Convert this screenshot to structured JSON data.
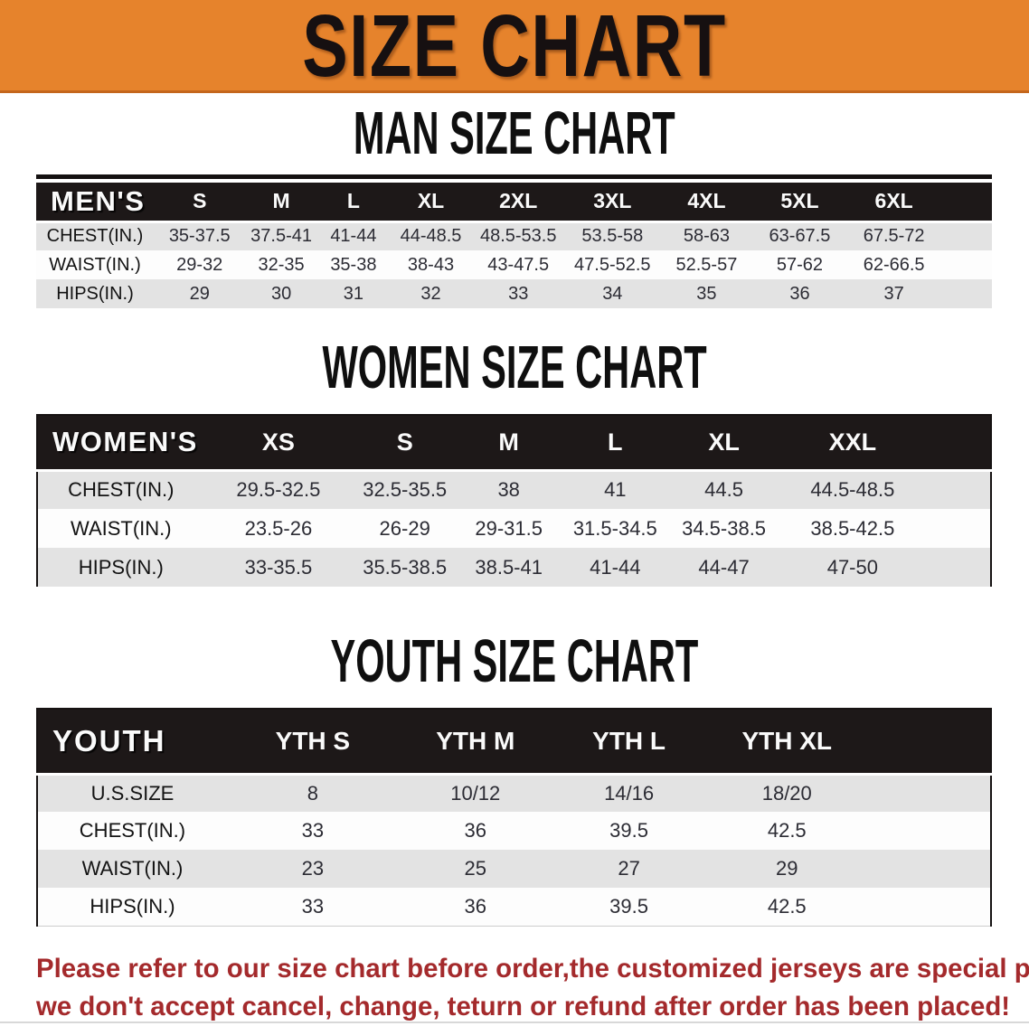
{
  "banner": {
    "title": "SIZE CHART"
  },
  "colors": {
    "banner_orange": "#e6832c",
    "banner_border": "#c4661c",
    "header_black": "#1d1818",
    "row_gray": "#e3e3e3",
    "row_white": "#fdfdfd",
    "disclaimer_red": "#a42a2c"
  },
  "sections": [
    {
      "heading": "MAN SIZE CHART",
      "table": {
        "header": {
          "label": "MEN'S",
          "sizes": [
            "S",
            "M",
            "L",
            "XL",
            "2XL",
            "3XL",
            "4XL",
            "5XL",
            "6XL"
          ]
        },
        "rows": [
          {
            "label": "CHEST(IN.)",
            "values": [
              "35-37.5",
              "37.5-41",
              "41-44",
              "44-48.5",
              "48.5-53.5",
              "53.5-58",
              "58-63",
              "63-67.5",
              "67.5-72"
            ]
          },
          {
            "label": "WAIST(IN.)",
            "values": [
              "29-32",
              "32-35",
              "35-38",
              "38-43",
              "43-47.5",
              "47.5-52.5",
              "52.5-57",
              "57-62",
              "62-66.5"
            ]
          },
          {
            "label": "HIPS(IN.)",
            "values": [
              "29",
              "30",
              "31",
              "32",
              "33",
              "34",
              "35",
              "36",
              "37"
            ]
          }
        ]
      }
    },
    {
      "heading": "WOMEN SIZE CHART",
      "table": {
        "header": {
          "label": "WOMEN'S",
          "sizes": [
            "XS",
            "S",
            "M",
            "L",
            "XL",
            "XXL"
          ]
        },
        "rows": [
          {
            "label": "CHEST(IN.)",
            "values": [
              "29.5-32.5",
              "32.5-35.5",
              "38",
              "41",
              "44.5",
              "44.5-48.5"
            ]
          },
          {
            "label": "WAIST(IN.)",
            "values": [
              "23.5-26",
              "26-29",
              "29-31.5",
              "31.5-34.5",
              "34.5-38.5",
              "38.5-42.5"
            ]
          },
          {
            "label": "HIPS(IN.)",
            "values": [
              "33-35.5",
              "35.5-38.5",
              "38.5-41",
              "41-44",
              "44-47",
              "47-50"
            ]
          }
        ]
      }
    },
    {
      "heading": "YOUTH SIZE CHART",
      "table": {
        "header": {
          "label": "YOUTH",
          "sizes": [
            "YTH S",
            "YTH M",
            "YTH L",
            "YTH XL"
          ]
        },
        "rows": [
          {
            "label": "U.S.SIZE",
            "values": [
              "8",
              "10/12",
              "14/16",
              "18/20"
            ]
          },
          {
            "label": "CHEST(IN.)",
            "values": [
              "33",
              "36",
              "39.5",
              "42.5"
            ]
          },
          {
            "label": "WAIST(IN.)",
            "values": [
              "23",
              "25",
              "27",
              "29"
            ]
          },
          {
            "label": "HIPS(IN.)",
            "values": [
              "33",
              "36",
              "39.5",
              "42.5"
            ]
          }
        ]
      }
    }
  ],
  "disclaimer": {
    "line1": "Please refer to our size chart before order,the customized jerseys are special products,",
    "line2": "we don't accept cancel, change, teturn or refund after order has been placed!"
  }
}
